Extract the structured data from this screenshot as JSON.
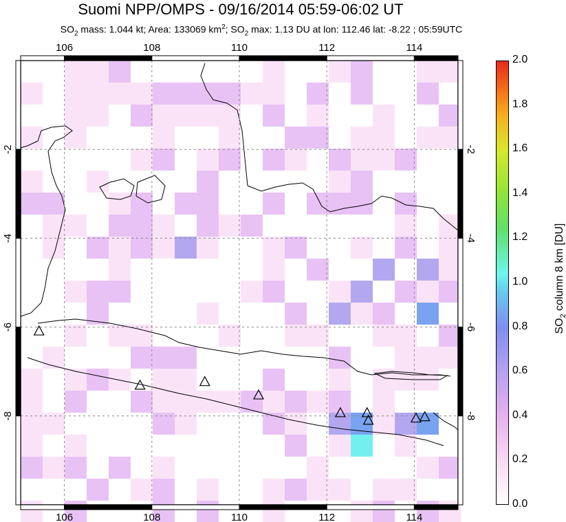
{
  "title": "Suomi NPP/OMPS - 09/16/2014 05:59-06:02 UT",
  "subtitle": {
    "prefix": "SO",
    "sub": "2",
    "text1": " mass: 1.044 kt; Area: 133069 km",
    "sup": "2",
    "text2": "; SO",
    "sub2": "2",
    "text3": " max: 1.13 DU at lon: 112.46 lat: -8.22 ; 05:59UTC"
  },
  "map": {
    "lon_ticks": [
      "106",
      "108",
      "110",
      "112",
      "114"
    ],
    "lat_ticks": [
      "-2",
      "-4",
      "-6",
      "-8"
    ],
    "lon_range": [
      105,
      115
    ],
    "lat_range": [
      -10,
      0
    ],
    "grid": true,
    "volcano_marker": "triangle-icon",
    "volcanoes": [
      {
        "lon": 105.42,
        "lat": -6.1
      },
      {
        "lon": 107.73,
        "lat": -7.32
      },
      {
        "lon": 109.21,
        "lat": -7.24
      },
      {
        "lon": 110.44,
        "lat": -7.54
      },
      {
        "lon": 112.31,
        "lat": -7.94
      },
      {
        "lon": 112.92,
        "lat": -7.94
      },
      {
        "lon": 112.95,
        "lat": -8.11
      },
      {
        "lon": 114.04,
        "lat": -8.06
      },
      {
        "lon": 114.24,
        "lat": -8.03
      }
    ],
    "colors": {
      "low": "#fbe3f7",
      "mid": "#e8c2f5",
      "high": "#b3a8f0",
      "max": "#72f0f0",
      "peak": "#7aa3ef",
      "coast": "#000000",
      "grid": "#888888"
    }
  },
  "colorbar": {
    "label": "SO",
    "label_sub": "2",
    "label_rest": " column 8 km [DU]",
    "ticks": [
      "2.0",
      "1.8",
      "1.6",
      "1.4",
      "1.2",
      "1.0",
      "0.8",
      "0.6",
      "0.4",
      "0.2",
      "0.0"
    ],
    "range": [
      0.0,
      2.0
    ]
  }
}
